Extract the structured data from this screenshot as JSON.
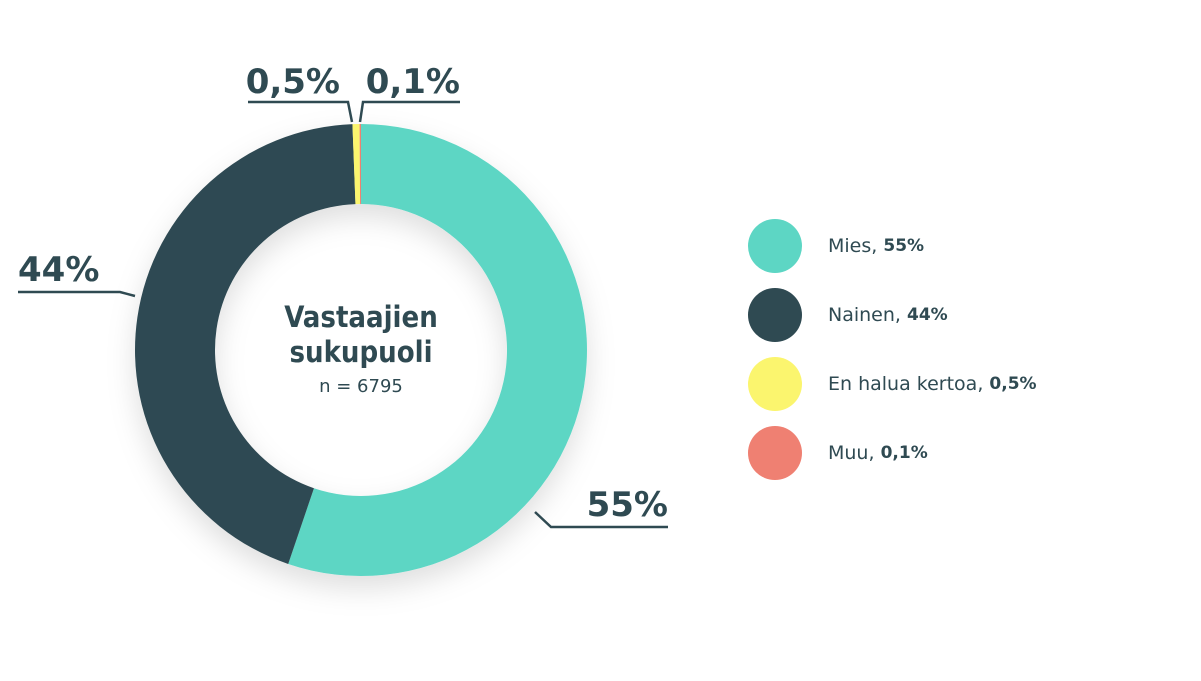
{
  "chart_data": {
    "type": "donut",
    "title": "Vastaajien sukupuoli",
    "subtitle": "n = 6795",
    "categories": [
      "Mies",
      "Nainen",
      "En halua kertoa",
      "Muu"
    ],
    "values": [
      55,
      44,
      0.5,
      0.1
    ],
    "value_labels": [
      "55%",
      "44%",
      "0,5%",
      "0,1%"
    ],
    "colors": [
      "#5dd6c4",
      "#2f4a52",
      "#fbf56e",
      "#ef8072"
    ],
    "legend": "right"
  }
}
